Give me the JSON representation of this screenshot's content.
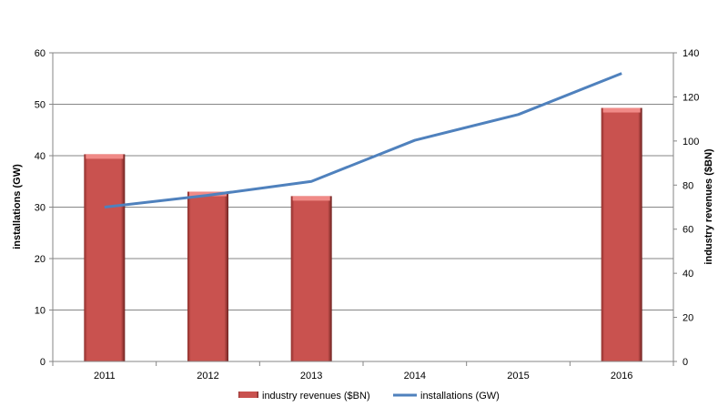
{
  "chart_data": {
    "type": "bar+line",
    "categories": [
      "2011",
      "2012",
      "2013",
      "2014",
      "2015",
      "2016"
    ],
    "series": [
      {
        "name": "industry revenues ($BN)",
        "type": "bar",
        "axis": "right",
        "color": "#c0504d",
        "values": [
          94,
          77,
          75,
          null,
          null,
          115
        ]
      },
      {
        "name": "installations (GW)",
        "type": "line",
        "axis": "left",
        "color": "#4f81bd",
        "values": [
          30,
          32.3,
          35,
          43,
          48,
          56
        ]
      }
    ],
    "y_left": {
      "label": "installations  (GW)",
      "range": [
        0,
        60
      ],
      "ticks": [
        "0",
        "10",
        "20",
        "30",
        "40",
        "50",
        "60"
      ]
    },
    "y_right": {
      "label": "industry revenues ($BN)",
      "range": [
        0,
        140
      ],
      "ticks": [
        "0",
        "20",
        "40",
        "60",
        "80",
        "100",
        "120",
        "140"
      ]
    },
    "grid": true,
    "legend": {
      "placement": "bottom",
      "entries": [
        "industry revenues ($BN)",
        "installations (GW)"
      ]
    }
  }
}
